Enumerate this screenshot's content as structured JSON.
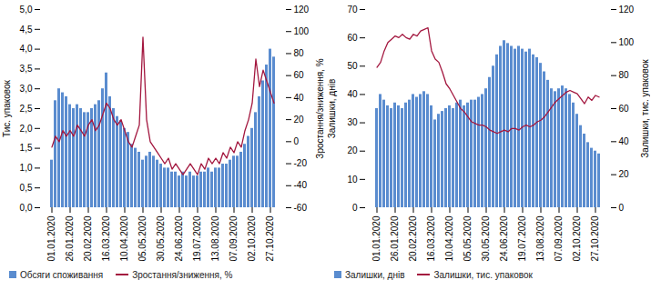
{
  "chart_data": [
    {
      "type": "bar",
      "categories": [
        "01.01.2020",
        null,
        null,
        null,
        null,
        "26.01.2020",
        null,
        null,
        null,
        null,
        "20.02.2020",
        null,
        null,
        null,
        null,
        "16.03.2020",
        null,
        null,
        null,
        null,
        "10.04.2020",
        null,
        null,
        null,
        null,
        "05.05.2020",
        null,
        null,
        null,
        null,
        "30.05.2020",
        null,
        null,
        null,
        null,
        "24.06.2020",
        null,
        null,
        null,
        null,
        "19.07.2020",
        null,
        null,
        null,
        null,
        "13.08.2020",
        null,
        null,
        null,
        null,
        "07.09.2020",
        null,
        null,
        null,
        null,
        "02.10.2020",
        null,
        null,
        null,
        null,
        "27.10.2020",
        null
      ],
      "series": [
        {
          "name": "Обсяги споживання",
          "type": "bar",
          "color": "#5a8ccf",
          "values": [
            1.2,
            2.7,
            3.0,
            2.9,
            2.8,
            2.6,
            2.5,
            2.6,
            2.5,
            2.4,
            2.4,
            2.5,
            2.6,
            2.7,
            3.0,
            3.4,
            2.8,
            2.5,
            2.3,
            2.2,
            2.0,
            1.9,
            1.6,
            1.5,
            1.4,
            1.2,
            1.3,
            1.4,
            1.3,
            1.2,
            1.1,
            1.0,
            1.0,
            0.9,
            0.9,
            0.8,
            0.9,
            0.8,
            0.9,
            0.8,
            0.8,
            0.9,
            0.9,
            1.0,
            0.9,
            1.0,
            1.0,
            1.1,
            1.1,
            1.2,
            1.3,
            1.3,
            1.4,
            1.6,
            1.8,
            2.0,
            2.4,
            2.8,
            3.2,
            3.6,
            4.0,
            3.8
          ]
        },
        {
          "name": "Зростання/зниження, %",
          "type": "line",
          "axis": "y2",
          "color": "#a3173f",
          "values": [
            -5,
            5,
            0,
            10,
            5,
            10,
            5,
            15,
            10,
            5,
            15,
            20,
            10,
            15,
            25,
            35,
            30,
            20,
            15,
            20,
            10,
            0,
            -5,
            5,
            15,
            95,
            20,
            0,
            -5,
            -10,
            -15,
            -20,
            -15,
            -25,
            -20,
            -25,
            -30,
            -25,
            -20,
            -25,
            -30,
            -20,
            -25,
            -15,
            -20,
            -15,
            -20,
            -10,
            -15,
            -5,
            -10,
            0,
            -5,
            10,
            20,
            35,
            75,
            50,
            65,
            55,
            45,
            35
          ]
        }
      ],
      "y_label": "Тис. упаковок",
      "y2_label": "Зростання/зниження, %",
      "ylim": [
        0,
        5
      ],
      "yticks": [
        {
          "value": 0,
          "label": "0,0"
        },
        {
          "value": 0.5,
          "label": "0,5"
        },
        {
          "value": 1,
          "label": "1,0"
        },
        {
          "value": 1.5,
          "label": "1,5"
        },
        {
          "value": 2,
          "label": "2,0"
        },
        {
          "value": 2.5,
          "label": "2,5"
        },
        {
          "value": 3,
          "label": "3,0"
        },
        {
          "value": 3.5,
          "label": "3,5"
        },
        {
          "value": 4,
          "label": "4,0"
        },
        {
          "value": 4.5,
          "label": "4,5"
        },
        {
          "value": 5,
          "label": "5,0"
        }
      ],
      "y2lim": [
        -60,
        120
      ],
      "y2ticks": [
        -60,
        -40,
        -20,
        0,
        20,
        40,
        60,
        80,
        100,
        120
      ],
      "grid": false,
      "legend": "bottom"
    },
    {
      "type": "bar",
      "categories": [
        "01.01.2020",
        null,
        null,
        null,
        null,
        "26.01.2020",
        null,
        null,
        null,
        null,
        "20.02.2020",
        null,
        null,
        null,
        null,
        "16.03.2020",
        null,
        null,
        null,
        null,
        "10.04.2020",
        null,
        null,
        null,
        null,
        "05.05.2020",
        null,
        null,
        null,
        null,
        "30.05.2020",
        null,
        null,
        null,
        null,
        "24.06.2020",
        null,
        null,
        null,
        null,
        "19.07.2020",
        null,
        null,
        null,
        null,
        "13.08.2020",
        null,
        null,
        null,
        null,
        "07.09.2020",
        null,
        null,
        null,
        null,
        "02.10.2020",
        null,
        null,
        null,
        null,
        "27.10.2020",
        null
      ],
      "series": [
        {
          "name": "Залишки, днів",
          "type": "bar",
          "color": "#5a8ccf",
          "values": [
            35,
            40,
            38,
            36,
            35,
            37,
            36,
            35,
            37,
            38,
            40,
            39,
            40,
            41,
            40,
            36,
            31,
            33,
            34,
            35,
            36,
            35,
            37,
            38,
            36,
            37,
            38,
            38,
            39,
            40,
            42,
            46,
            50,
            54,
            57,
            59,
            58,
            57,
            56,
            57,
            56,
            55,
            56,
            54,
            53,
            51,
            48,
            45,
            42,
            41,
            42,
            43,
            42,
            40,
            37,
            33,
            29,
            26,
            23,
            21,
            20,
            19
          ]
        },
        {
          "name": "Залишки, тис. упаковок",
          "type": "line",
          "axis": "y2",
          "color": "#a3173f",
          "values": [
            85,
            88,
            95,
            100,
            102,
            104,
            103,
            105,
            103,
            102,
            105,
            104,
            107,
            108,
            109,
            95,
            90,
            88,
            82,
            75,
            72,
            68,
            64,
            60,
            58,
            55,
            52,
            51,
            50,
            50,
            49,
            47,
            46,
            45,
            46,
            47,
            46,
            48,
            48,
            47,
            49,
            50,
            49,
            50,
            52,
            53,
            55,
            58,
            61,
            64,
            66,
            68,
            70,
            71,
            70,
            69,
            66,
            63,
            67,
            65,
            68,
            67
          ]
        }
      ],
      "y_label": "Залишки, днів",
      "y2_label": "Залишки, тис. упаковок",
      "ylim": [
        0,
        70
      ],
      "yticks": [
        0,
        10,
        20,
        30,
        40,
        50,
        60,
        70
      ],
      "y2lim": [
        0,
        120
      ],
      "y2ticks": [
        0,
        20,
        40,
        60,
        80,
        100,
        120
      ],
      "grid": false,
      "legend": "bottom"
    }
  ]
}
